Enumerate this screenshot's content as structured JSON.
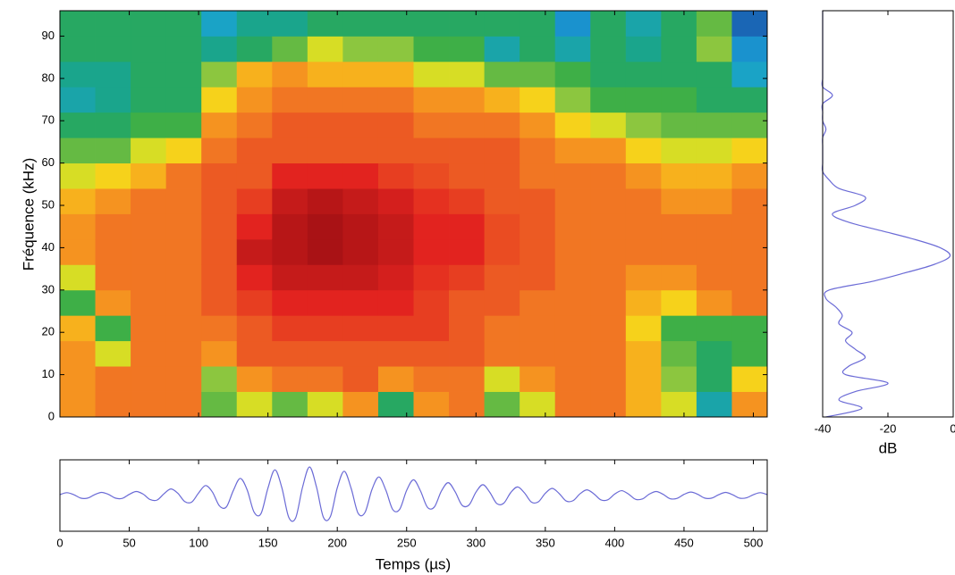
{
  "chart_data": [
    {
      "type": "heatmap",
      "ylabel": "Fréquence (kHz)",
      "xlim": [
        0,
        510
      ],
      "ylim": [
        0,
        96
      ],
      "zlim": [
        -40,
        0
      ],
      "yticks": [
        0,
        10,
        20,
        30,
        40,
        50,
        60,
        70,
        80,
        90
      ],
      "values": [
        [
          -14,
          -14,
          -14,
          -16,
          -26,
          -20,
          -14,
          -14,
          -16,
          -20,
          -24,
          -28,
          -32,
          -30,
          -28,
          -28
        ],
        [
          -12,
          -12,
          -20,
          -26,
          -14,
          -12,
          -12,
          -12,
          -14,
          -18,
          -24,
          -28,
          -30,
          -30,
          -28,
          -28
        ],
        [
          -12,
          -12,
          -12,
          -12,
          -12,
          -12,
          -12,
          -12,
          -12,
          -16,
          -20,
          -26,
          -28,
          -28,
          -28,
          -28
        ],
        [
          -12,
          -12,
          -12,
          -12,
          -12,
          -12,
          -12,
          -12,
          -12,
          -12,
          -18,
          -26,
          -28,
          -28,
          -28,
          -28
        ],
        [
          -24,
          -22,
          -14,
          -12,
          -10,
          -10,
          -10,
          -10,
          -10,
          -10,
          -12,
          -14,
          -18,
          -22,
          -30,
          -34
        ],
        [
          -20,
          -14,
          -10,
          -10,
          -8,
          -6,
          -4,
          -6,
          -8,
          -10,
          -10,
          -12,
          -14,
          -16,
          -28,
          -30
        ],
        [
          -24,
          -12,
          -10,
          -8,
          -6,
          -4,
          -3,
          -3,
          -4,
          -6,
          -10,
          -10,
          -12,
          -14,
          -24,
          -30
        ],
        [
          -20,
          -12,
          -10,
          -8,
          -6,
          -4,
          -2,
          -2,
          -3,
          -6,
          -10,
          -10,
          -12,
          -16,
          -20,
          -28
        ],
        [
          -14,
          -10,
          -10,
          -8,
          -6,
          -4,
          -3,
          -3,
          -4,
          -6,
          -10,
          -10,
          -12,
          -16,
          -22,
          -28
        ],
        [
          -28,
          -14,
          -10,
          -8,
          -6,
          -5,
          -4,
          -4,
          -5,
          -8,
          -10,
          -10,
          -12,
          -16,
          -22,
          -28
        ],
        [
          -14,
          -12,
          -10,
          -8,
          -8,
          -7,
          -6,
          -6,
          -7,
          -9,
          -10,
          -12,
          -14,
          -20,
          -26,
          -28
        ],
        [
          -12,
          -12,
          -10,
          -10,
          -10,
          -8,
          -6,
          -6,
          -8,
          -10,
          -10,
          -12,
          -14,
          -20,
          -26,
          -28
        ],
        [
          -24,
          -20,
          -12,
          -12,
          -10,
          -10,
          -9,
          -9,
          -10,
          -10,
          -10,
          -12,
          -16,
          -24,
          -32,
          -28
        ],
        [
          -20,
          -14,
          -12,
          -12,
          -12,
          -10,
          -10,
          -10,
          -10,
          -12,
          -12,
          -14,
          -18,
          -24,
          -28,
          -28
        ],
        [
          -12,
          -12,
          -12,
          -12,
          -12,
          -12,
          -12,
          -12,
          -12,
          -12,
          -14,
          -18,
          -22,
          -26,
          -32,
          -36
        ],
        [
          -12,
          -12,
          -12,
          -12,
          -12,
          -12,
          -12,
          -12,
          -12,
          -12,
          -14,
          -20,
          -26,
          -28,
          -28,
          -28
        ],
        [
          -16,
          -16,
          -16,
          -18,
          -16,
          -14,
          -12,
          -12,
          -12,
          -14,
          -18,
          -22,
          -26,
          -28,
          -30,
          -32
        ],
        [
          -20,
          -22,
          -24,
          -26,
          -18,
          -14,
          -12,
          -12,
          -14,
          -16,
          -20,
          -24,
          -26,
          -28,
          -28,
          -28
        ],
        [
          -32,
          -28,
          -28,
          -26,
          -14,
          -12,
          -12,
          -12,
          -14,
          -16,
          -20,
          -24,
          -28,
          -28,
          -22,
          -24
        ],
        [
          -14,
          -18,
          -26,
          -26,
          -12,
          -12,
          -12,
          -12,
          -12,
          -14,
          -18,
          -24,
          -28,
          -34,
          -36,
          -38
        ]
      ]
    },
    {
      "type": "line",
      "xlabel": "Temps (µs)",
      "xlim": [
        0,
        510
      ],
      "ylim": [
        -1.25,
        1.25
      ],
      "color": "#6b6bd6",
      "xticks": [
        0,
        50,
        100,
        150,
        200,
        250,
        300,
        350,
        400,
        450,
        500
      ],
      "x": [
        0,
        5,
        10,
        15,
        20,
        25,
        30,
        35,
        40,
        45,
        50,
        55,
        60,
        65,
        70,
        75,
        80,
        85,
        90,
        95,
        100,
        105,
        110,
        115,
        120,
        125,
        130,
        135,
        140,
        145,
        150,
        155,
        160,
        165,
        170,
        175,
        180,
        185,
        190,
        195,
        200,
        205,
        210,
        215,
        220,
        225,
        230,
        235,
        240,
        245,
        250,
        255,
        260,
        265,
        270,
        275,
        280,
        285,
        290,
        295,
        300,
        305,
        310,
        315,
        320,
        325,
        330,
        335,
        340,
        345,
        350,
        355,
        360,
        365,
        370,
        375,
        380,
        385,
        390,
        395,
        400,
        405,
        410,
        415,
        420,
        425,
        430,
        435,
        440,
        445,
        450,
        455,
        460,
        465,
        470,
        475,
        480,
        485,
        490,
        495,
        500,
        505,
        510
      ],
      "values": [
        0.03,
        0.1,
        0.03,
        -0.09,
        -0.09,
        0.03,
        0.11,
        0.04,
        -0.09,
        -0.1,
        0.04,
        0.14,
        0.05,
        -0.14,
        -0.16,
        0.06,
        0.23,
        0.08,
        -0.21,
        -0.23,
        0.09,
        0.35,
        0.12,
        -0.36,
        -0.4,
        0.17,
        0.6,
        0.2,
        -0.58,
        -0.63,
        0.26,
        0.9,
        0.28,
        -0.76,
        -0.78,
        0.3,
        1.0,
        0.3,
        -0.76,
        -0.74,
        0.27,
        0.85,
        0.25,
        -0.62,
        -0.59,
        0.21,
        0.65,
        0.19,
        -0.49,
        -0.48,
        0.18,
        0.55,
        0.16,
        -0.41,
        -0.4,
        0.15,
        0.45,
        0.13,
        -0.34,
        -0.33,
        0.12,
        0.38,
        0.11,
        -0.28,
        -0.27,
        0.1,
        0.3,
        0.09,
        -0.23,
        -0.22,
        0.08,
        0.25,
        0.07,
        -0.19,
        -0.18,
        0.06,
        0.2,
        0.06,
        -0.15,
        -0.15,
        0.05,
        0.17,
        0.05,
        -0.13,
        -0.12,
        0.05,
        0.14,
        0.04,
        -0.11,
        -0.1,
        0.04,
        0.12,
        0.04,
        -0.09,
        -0.09,
        0.03,
        0.11,
        0.03,
        -0.09,
        -0.08,
        0.03,
        0.1,
        0.03
      ]
    },
    {
      "type": "profile",
      "xlabel": "dB",
      "xlim": [
        -40,
        0
      ],
      "ylim": [
        0,
        96
      ],
      "color": "#6b6bd6",
      "xticks": [
        -40,
        -20,
        0
      ],
      "y": [
        0,
        2,
        4,
        6,
        8,
        10,
        12,
        14,
        16,
        18,
        20,
        22,
        24,
        26,
        28,
        30,
        32,
        34,
        36,
        38,
        40,
        42,
        44,
        46,
        48,
        50,
        52,
        54,
        56,
        58,
        60,
        62,
        64,
        66,
        68,
        70,
        72,
        74,
        76,
        78,
        80,
        82,
        84,
        86,
        88,
        90,
        92,
        94,
        96
      ],
      "values": [
        -39,
        -28,
        -35,
        -30,
        -20,
        -33,
        -32,
        -27,
        -30,
        -33,
        -31,
        -35,
        -34,
        -36,
        -39,
        -38,
        -25,
        -15,
        -6,
        -1,
        -4,
        -12,
        -22,
        -32,
        -37,
        -30,
        -27,
        -35,
        -38,
        -40,
        -40,
        -40,
        -40,
        -40,
        -39,
        -40,
        -40,
        -40,
        -37,
        -40,
        -40,
        -40,
        -40,
        -40,
        -40,
        -40,
        -40,
        -40,
        -40
      ]
    }
  ]
}
